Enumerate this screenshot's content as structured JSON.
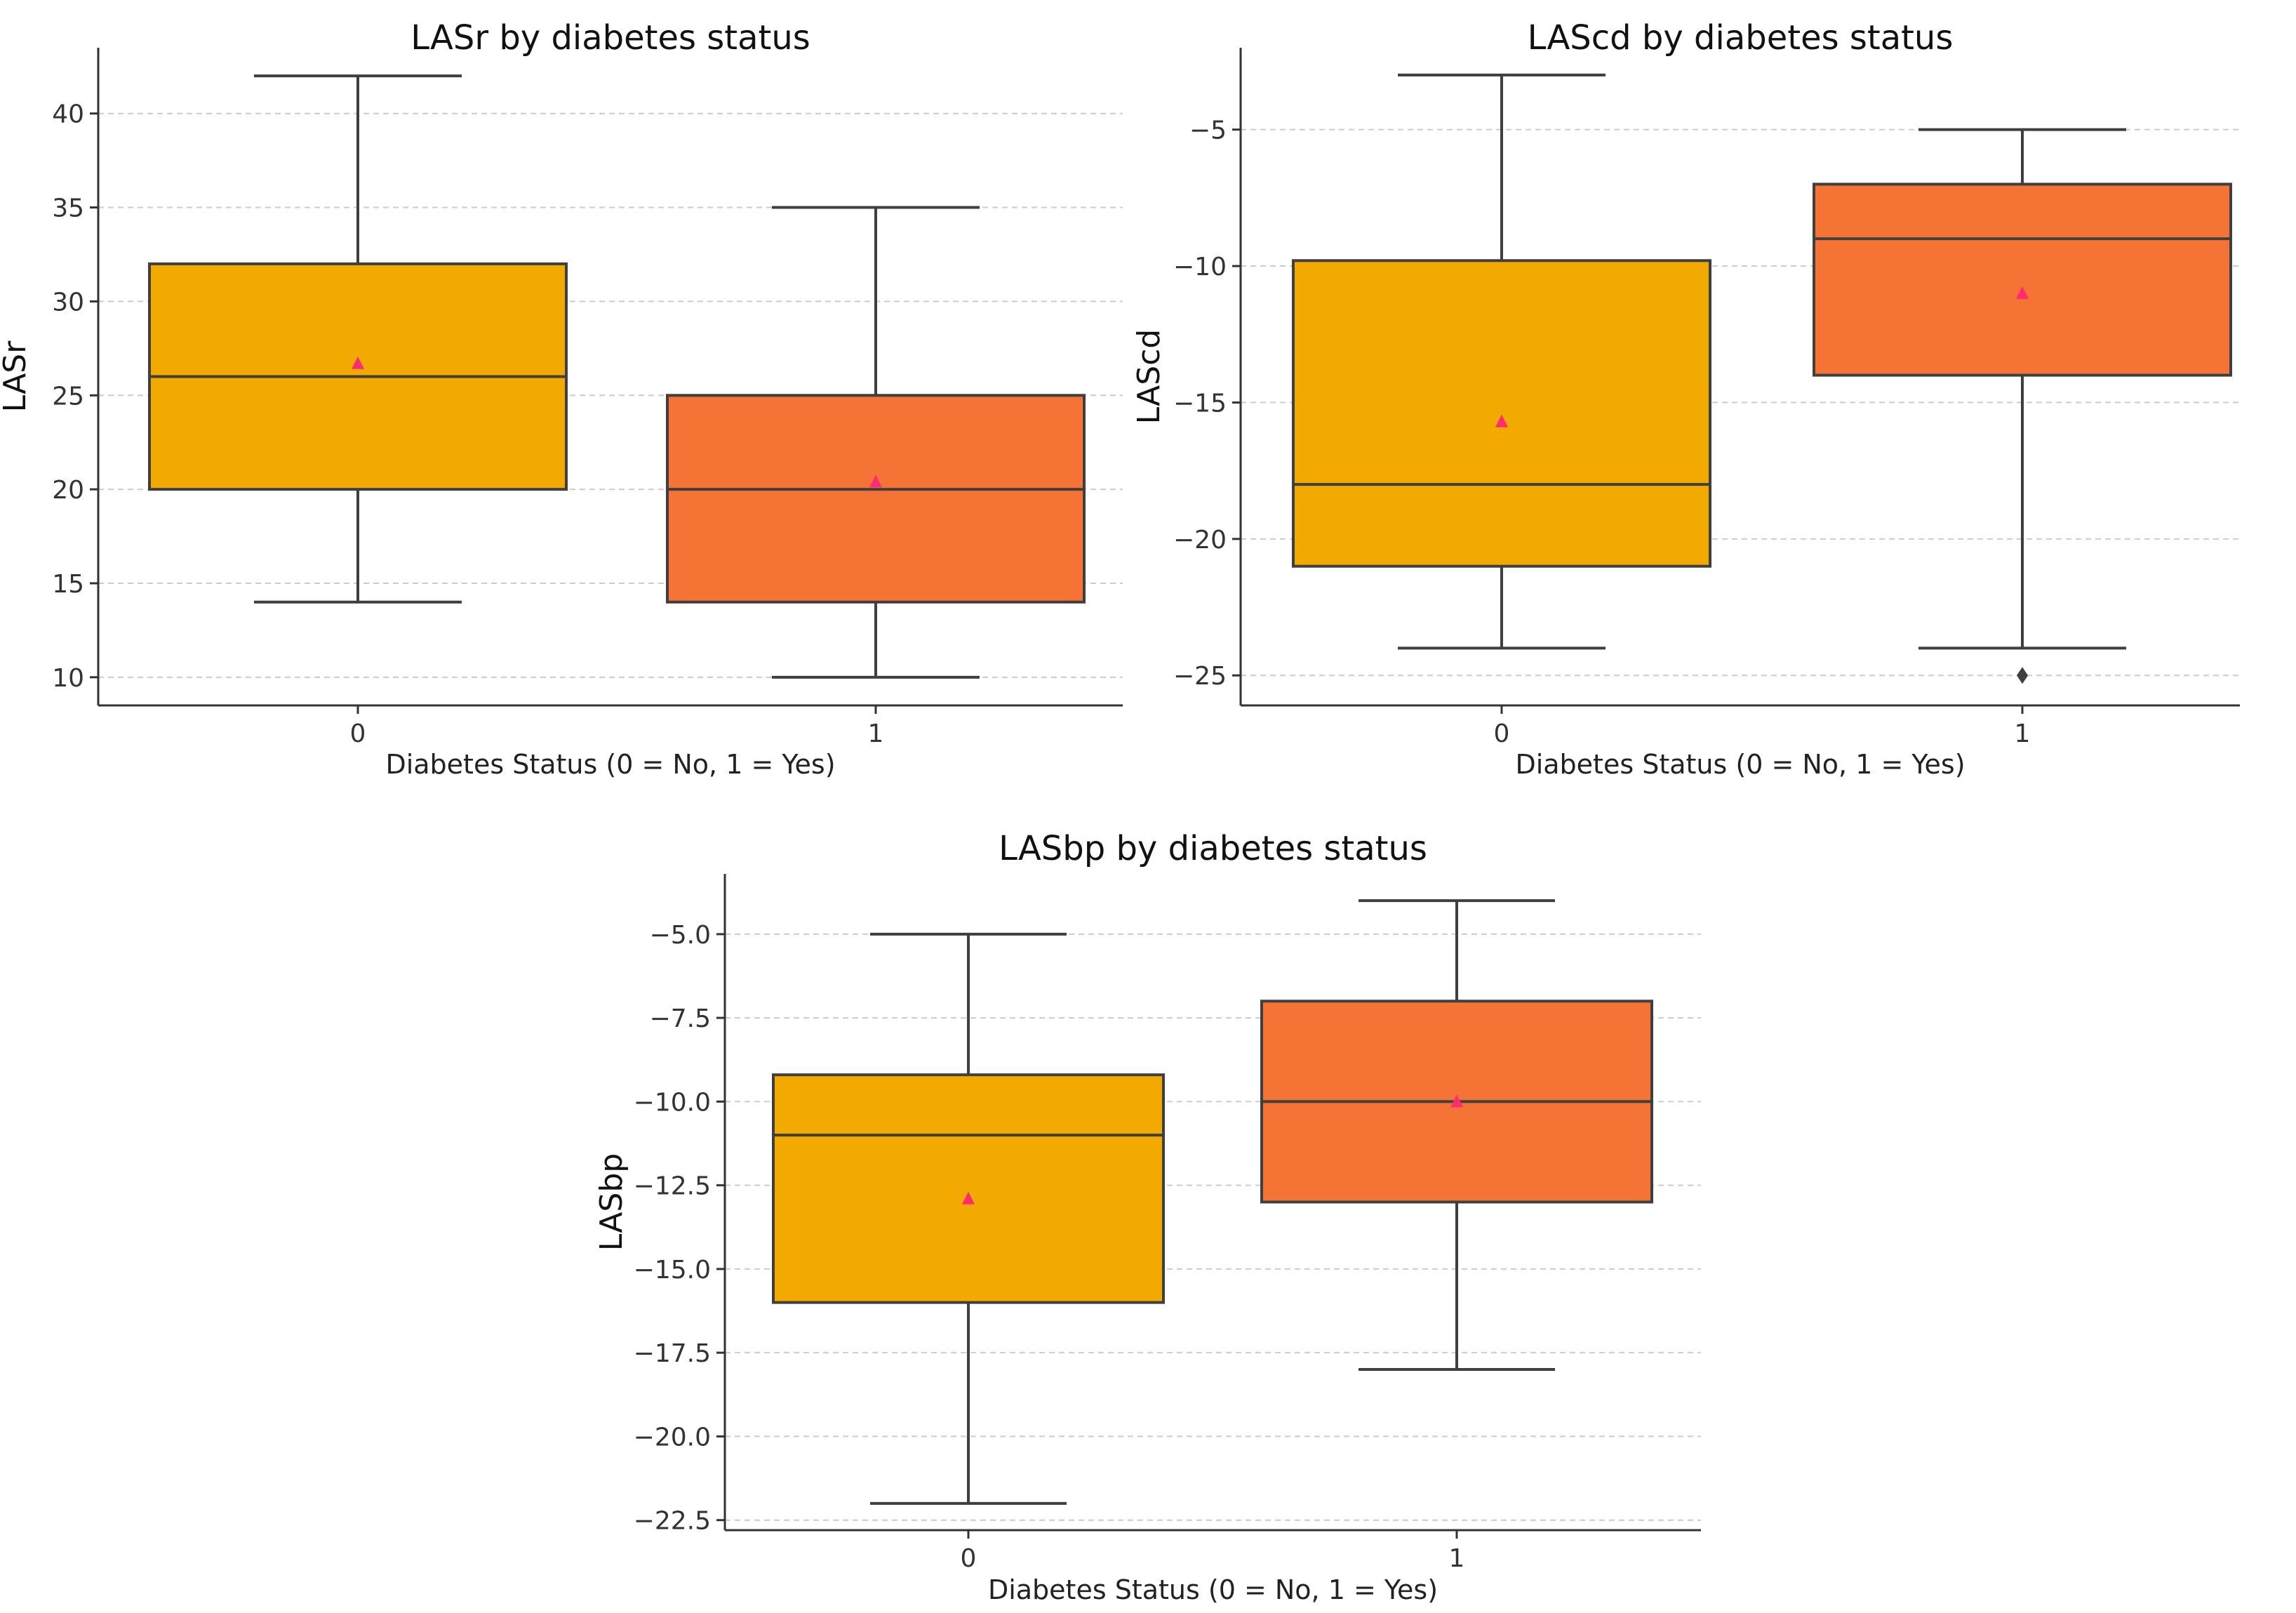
{
  "chart_data": [
    {
      "type": "box",
      "title": "LASr by diabetes status",
      "xlabel": "Diabetes Status (0 = No, 1 = Yes)",
      "ylabel": "LASr",
      "ylim": [
        8.5,
        43.5
      ],
      "yticks": [
        10,
        15,
        20,
        25,
        30,
        35,
        40
      ],
      "ytick_labels": [
        "10",
        "15",
        "20",
        "25",
        "30",
        "35",
        "40"
      ],
      "grid": true,
      "categories": [
        "0",
        "1"
      ],
      "colors": [
        "#f2a900",
        "#f47335"
      ],
      "mean_color": "#ff2d6f",
      "boxes": [
        {
          "label": "0",
          "whisker_low": 14,
          "q1": 20,
          "median": 26,
          "q3": 32,
          "whisker_high": 42,
          "mean": 26.7,
          "outliers": []
        },
        {
          "label": "1",
          "whisker_low": 10,
          "q1": 14,
          "median": 20,
          "q3": 25,
          "whisker_high": 35,
          "mean": 20.4,
          "outliers": []
        }
      ]
    },
    {
      "type": "box",
      "title": "LAScd by diabetes status",
      "xlabel": "Diabetes Status (0 = No, 1 = Yes)",
      "ylabel": "LAScd",
      "ylim": [
        -26.1,
        -2.0
      ],
      "yticks": [
        -25,
        -20,
        -15,
        -10,
        -5
      ],
      "ytick_labels": [
        "−25",
        "−20",
        "−15",
        "−10",
        "−5"
      ],
      "grid": true,
      "categories": [
        "0",
        "1"
      ],
      "colors": [
        "#f2a900",
        "#f47335"
      ],
      "mean_color": "#ff2d6f",
      "boxes": [
        {
          "label": "0",
          "whisker_low": -24,
          "q1": -21,
          "median": -18,
          "q3": -9.8,
          "whisker_high": -3,
          "mean": -15.7,
          "outliers": []
        },
        {
          "label": "1",
          "whisker_low": -24,
          "q1": -14,
          "median": -9,
          "q3": -7,
          "whisker_high": -5,
          "mean": -11,
          "outliers": [
            -25
          ]
        }
      ]
    },
    {
      "type": "box",
      "title": "LASbp by diabetes status",
      "xlabel": "Diabetes Status (0 = No, 1 = Yes)",
      "ylabel": "LASbp",
      "ylim": [
        -22.8,
        -3.2
      ],
      "yticks": [
        -22.5,
        -20.0,
        -17.5,
        -15.0,
        -12.5,
        -10.0,
        -7.5,
        -5.0
      ],
      "ytick_labels": [
        "−22.5",
        "−20.0",
        "−17.5",
        "−15.0",
        "−12.5",
        "−10.0",
        "−7.5",
        "−5.0"
      ],
      "grid": true,
      "categories": [
        "0",
        "1"
      ],
      "colors": [
        "#f2a900",
        "#f47335"
      ],
      "mean_color": "#ff2d6f",
      "boxes": [
        {
          "label": "0",
          "whisker_low": -22,
          "q1": -16,
          "median": -11,
          "q3": -9.2,
          "whisker_high": -5,
          "mean": -12.9,
          "outliers": []
        },
        {
          "label": "1",
          "whisker_low": -18,
          "q1": -13,
          "median": -10,
          "q3": -7,
          "whisker_high": -4,
          "mean": -10,
          "outliers": []
        }
      ]
    }
  ]
}
